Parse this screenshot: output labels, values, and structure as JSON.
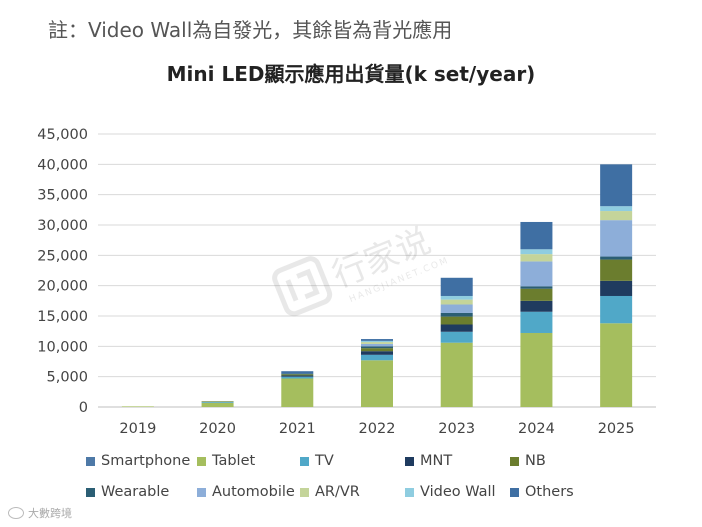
{
  "header": {
    "note": "註：Video Wall為自發光，其餘皆為背光應用"
  },
  "footer": {
    "source": "大數跨境"
  },
  "watermark": {
    "text": "行家说",
    "subtext": "HANGJIANET.COM"
  },
  "chart_data": {
    "type": "bar",
    "stacked": true,
    "title": "Mini LED顯示應用出貨量(k set/year)",
    "xlabel": "",
    "ylabel": "",
    "categories": [
      "2019",
      "2020",
      "2021",
      "2022",
      "2023",
      "2024",
      "2025"
    ],
    "ylim": [
      0,
      45000
    ],
    "yticks": [
      "0",
      "5,000",
      "10,000",
      "15,000",
      "20,000",
      "25,000",
      "30,000",
      "35,000",
      "40,000",
      "45,000"
    ],
    "grid": true,
    "legend_position": "bottom",
    "series": [
      {
        "name": "Smartphone",
        "color": "#4e79a7",
        "values": [
          0,
          0,
          0,
          0,
          0,
          0,
          0
        ]
      },
      {
        "name": "Tablet",
        "color": "#a5be5e",
        "values": [
          100,
          700,
          4700,
          7700,
          10600,
          12200,
          13800
        ]
      },
      {
        "name": "TV",
        "color": "#50a8c8",
        "values": [
          0,
          150,
          300,
          900,
          1800,
          3500,
          4500
        ]
      },
      {
        "name": "MNT",
        "color": "#1f3b5f",
        "values": [
          0,
          0,
          200,
          600,
          1200,
          1800,
          2500
        ]
      },
      {
        "name": "NB",
        "color": "#6b7d2e",
        "values": [
          0,
          100,
          200,
          500,
          1300,
          2000,
          3500
        ]
      },
      {
        "name": "Wearable",
        "color": "#2b5e74",
        "values": [
          0,
          0,
          100,
          300,
          600,
          400,
          500
        ]
      },
      {
        "name": "Automobile",
        "color": "#8daed9",
        "values": [
          0,
          0,
          0,
          400,
          1400,
          4100,
          6000
        ]
      },
      {
        "name": "AR/VR",
        "color": "#c4d49a",
        "values": [
          0,
          0,
          0,
          300,
          800,
          1200,
          1500
        ]
      },
      {
        "name": "Video Wall",
        "color": "#8fcde0",
        "values": [
          0,
          0,
          0,
          200,
          600,
          800,
          800
        ]
      },
      {
        "name": "Others",
        "color": "#3f6fa3",
        "values": [
          0,
          0,
          400,
          300,
          3000,
          4500,
          6900
        ]
      }
    ]
  }
}
